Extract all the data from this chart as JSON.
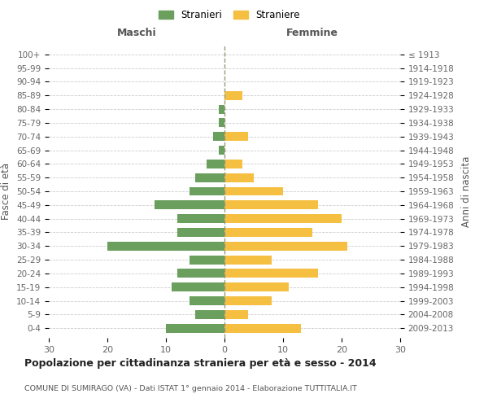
{
  "age_groups": [
    "0-4",
    "5-9",
    "10-14",
    "15-19",
    "20-24",
    "25-29",
    "30-34",
    "35-39",
    "40-44",
    "45-49",
    "50-54",
    "55-59",
    "60-64",
    "65-69",
    "70-74",
    "75-79",
    "80-84",
    "85-89",
    "90-94",
    "95-99",
    "100+"
  ],
  "birth_years": [
    "2009-2013",
    "2004-2008",
    "1999-2003",
    "1994-1998",
    "1989-1993",
    "1984-1988",
    "1979-1983",
    "1974-1978",
    "1969-1973",
    "1964-1968",
    "1959-1963",
    "1954-1958",
    "1949-1953",
    "1944-1948",
    "1939-1943",
    "1934-1938",
    "1929-1933",
    "1924-1928",
    "1919-1923",
    "1914-1918",
    "≤ 1913"
  ],
  "males": [
    10,
    5,
    6,
    9,
    8,
    6,
    20,
    8,
    8,
    12,
    6,
    5,
    3,
    1,
    2,
    1,
    1,
    0,
    0,
    0,
    0
  ],
  "females": [
    13,
    4,
    8,
    11,
    16,
    8,
    21,
    15,
    20,
    16,
    10,
    5,
    3,
    0,
    4,
    0,
    0,
    3,
    0,
    0,
    0
  ],
  "male_color": "#6a9f5e",
  "female_color": "#f5bf42",
  "title": "Popolazione per cittadinanza straniera per età e sesso - 2014",
  "subtitle": "COMUNE DI SUMIRAGO (VA) - Dati ISTAT 1° gennaio 2014 - Elaborazione TUTTITALIA.IT",
  "xlabel_left": "Maschi",
  "xlabel_right": "Femmine",
  "ylabel_left": "Fasce di età",
  "ylabel_right": "Anni di nascita",
  "legend_male": "Stranieri",
  "legend_female": "Straniere",
  "xlim": 30,
  "background_color": "#ffffff",
  "grid_color": "#cccccc"
}
